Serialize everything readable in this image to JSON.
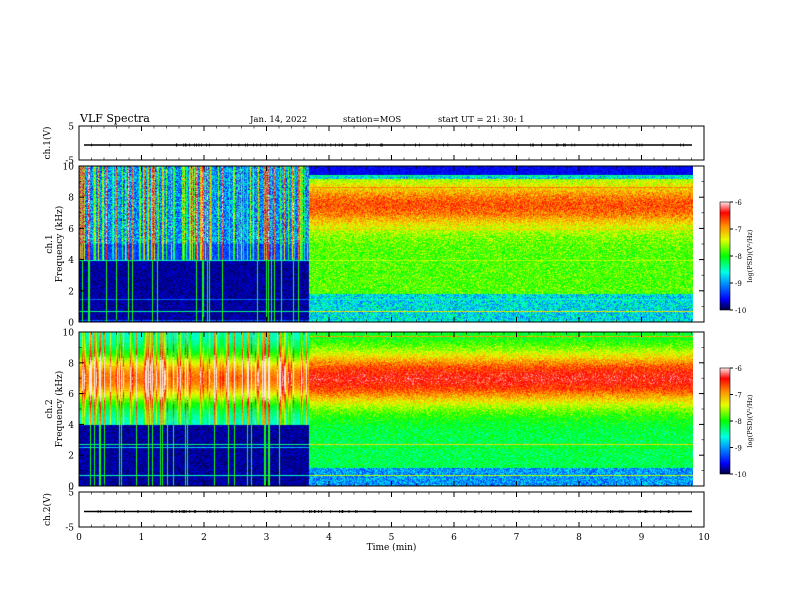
{
  "header": {
    "title": "VLF Spectra",
    "date": "Jan. 14, 2022",
    "station": "station=MOS",
    "start": "start  UT =   21: 30: 1"
  },
  "chart_data": [
    {
      "type": "line",
      "panel": "ch.1 waveform",
      "ylabel": "ch.1(V)",
      "ylim": [
        -5,
        5
      ],
      "ytick_labels": [
        "5",
        "-5"
      ],
      "trace_level": 0
    },
    {
      "type": "heatmap",
      "panel": "ch.1 spectrogram",
      "ylabel": [
        "ch.1",
        "Frequency (kHz)"
      ],
      "ylim": [
        0,
        10
      ],
      "ytick_labels": [
        "0",
        "2",
        "4",
        "6",
        "8",
        "10"
      ],
      "xlim": [
        0,
        10
      ],
      "colorbar": {
        "label": "log(PSD)(V²/Hz)",
        "range": [
          -10,
          -6
        ],
        "tick_labels": [
          "-6",
          "-7",
          "-8",
          "-9",
          "-10"
        ]
      }
    },
    {
      "type": "heatmap",
      "panel": "ch.2 spectrogram",
      "ylabel": [
        "ch.2",
        "Frequency (kHz)"
      ],
      "ylim": [
        0,
        10
      ],
      "ytick_labels": [
        "0",
        "2",
        "4",
        "6",
        "8",
        "10"
      ],
      "xlim": [
        0,
        10
      ],
      "colorbar": {
        "label": "log(PSD)(V²/Hz)",
        "range": [
          -10,
          -6
        ],
        "tick_labels": [
          "-6",
          "-7",
          "-8",
          "-9",
          "-10"
        ]
      }
    },
    {
      "type": "line",
      "panel": "ch.2 waveform",
      "ylabel": "ch.2(V)",
      "ylim": [
        -5,
        5
      ],
      "ytick_labels": [
        "5",
        "-5"
      ],
      "trace_level": 0
    }
  ],
  "xaxis": {
    "label": "Time (min)",
    "xlim": [
      0,
      10
    ],
    "tick_labels": [
      "0",
      "1",
      "2",
      "3",
      "4",
      "5",
      "6",
      "7",
      "8",
      "9",
      "10"
    ]
  },
  "colors": {
    "cmap": [
      "#000066",
      "#0000ff",
      "#00aaff",
      "#00ffcc",
      "#00ff00",
      "#ffff00",
      "#ff8800",
      "#ff0000",
      "#ffffff"
    ],
    "background": "#000033"
  }
}
